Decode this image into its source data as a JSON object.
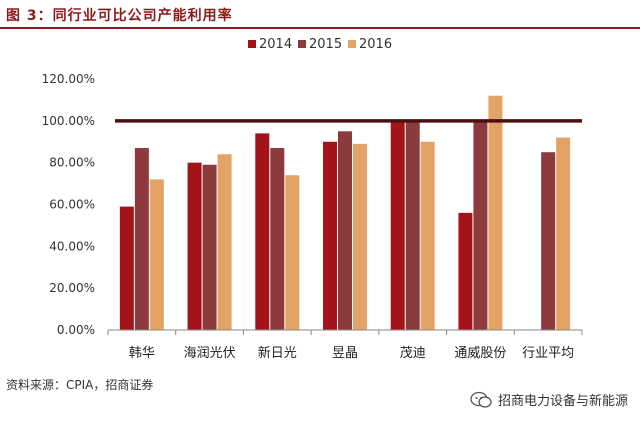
{
  "figure": {
    "title": "图 3：同行业可比公司产能利用率",
    "source": "资料来源：CPIA，招商证券",
    "watermark": "招商电力设备与新能源"
  },
  "colors": {
    "title": "#8b1a1a",
    "reference_line": "#4a1010"
  },
  "chart_data": {
    "type": "bar",
    "categories": [
      "韩华",
      "海润光伏",
      "新日光",
      "昱晶",
      "茂迪",
      "通威股份",
      "行业平均"
    ],
    "series": [
      {
        "name": "2014",
        "color": "#a3141a",
        "values": [
          59,
          80,
          94,
          90,
          100,
          56,
          null
        ]
      },
      {
        "name": "2015",
        "color": "#8c3a3e",
        "values": [
          87,
          79,
          87,
          95,
          100,
          100,
          85
        ]
      },
      {
        "name": "2016",
        "color": "#e3a366",
        "values": [
          72,
          84,
          74,
          89,
          90,
          112,
          92
        ]
      }
    ],
    "reference_line": 100,
    "ylim": [
      0,
      120
    ],
    "yticks": [
      "0.00%",
      "20.00%",
      "40.00%",
      "60.00%",
      "80.00%",
      "100.00%",
      "120.00%"
    ],
    "legend_position": "top-center",
    "grid": false
  }
}
